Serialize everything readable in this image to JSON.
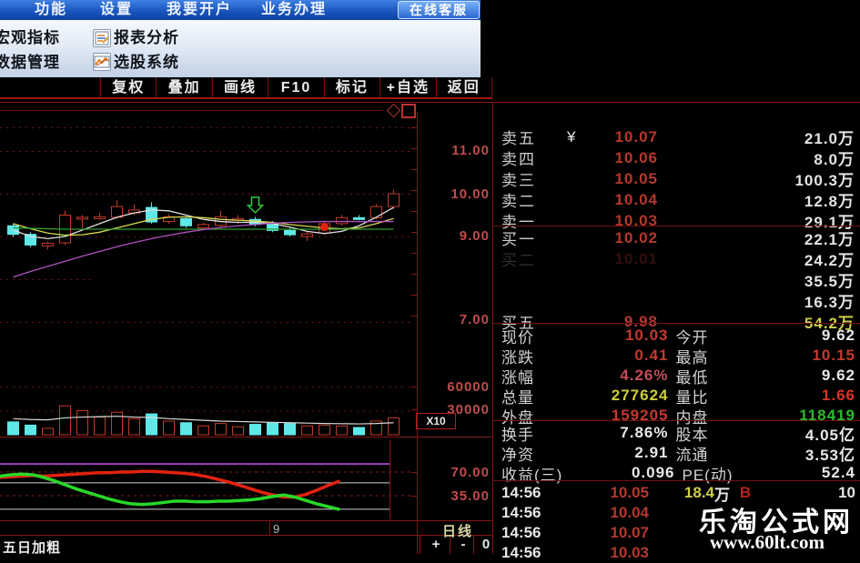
{
  "menubar": {
    "items": [
      "功能",
      "设置",
      "我要开户",
      "业务办理"
    ],
    "service_button": "在线客服"
  },
  "menu_panel": {
    "left_items": [
      "宏观指标",
      "数据管理"
    ],
    "right_items": [
      "报表分析",
      "选股系统"
    ]
  },
  "toolbar": {
    "buttons": [
      "复权",
      "叠加",
      "画线",
      "F10",
      "标记",
      "+自选",
      "返回"
    ]
  },
  "chart": {
    "price_axis": [
      "11.00",
      "10.00",
      "9.00",
      "7.00"
    ],
    "volume_axis": [
      "60000",
      "30000"
    ],
    "multiplier": "X10",
    "indicator_axis": [
      "70.00",
      "35.00"
    ],
    "x_label": "9",
    "period": "日线",
    "indicator_name": "五日加粗",
    "zoom_plus": "+",
    "zoom_minus": "-",
    "zoom_zero": "0"
  },
  "chart_data": {
    "type": "candlestick",
    "price_gridlines": [
      11,
      10,
      9,
      7
    ],
    "partial_gridlines": [
      8
    ],
    "volume_gridlines": [
      60000,
      30000
    ],
    "candles": [
      {
        "o": 9.25,
        "h": 9.3,
        "l": 9.0,
        "c": 9.05,
        "dir": "down"
      },
      {
        "o": 9.05,
        "h": 9.1,
        "l": 8.75,
        "c": 8.8,
        "dir": "down"
      },
      {
        "o": 8.78,
        "h": 8.88,
        "l": 8.7,
        "c": 8.84,
        "dir": "up"
      },
      {
        "o": 8.85,
        "h": 9.6,
        "l": 8.8,
        "c": 9.5,
        "dir": "up"
      },
      {
        "o": 9.45,
        "h": 9.5,
        "l": 9.2,
        "c": 9.44,
        "dir": "up"
      },
      {
        "o": 9.42,
        "h": 9.55,
        "l": 9.38,
        "c": 9.46,
        "dir": "up"
      },
      {
        "o": 9.45,
        "h": 9.85,
        "l": 9.42,
        "c": 9.7,
        "dir": "up"
      },
      {
        "o": 9.55,
        "h": 9.75,
        "l": 9.5,
        "c": 9.62,
        "dir": "up"
      },
      {
        "o": 9.68,
        "h": 9.8,
        "l": 9.3,
        "c": 9.34,
        "dir": "down"
      },
      {
        "o": 9.35,
        "h": 9.52,
        "l": 9.3,
        "c": 9.46,
        "dir": "up"
      },
      {
        "o": 9.42,
        "h": 9.46,
        "l": 9.2,
        "c": 9.25,
        "dir": "down"
      },
      {
        "o": 9.2,
        "h": 9.32,
        "l": 9.15,
        "c": 9.28,
        "dir": "up"
      },
      {
        "o": 9.26,
        "h": 9.6,
        "l": 9.2,
        "c": 9.46,
        "dir": "up"
      },
      {
        "o": 9.4,
        "h": 9.5,
        "l": 9.3,
        "c": 9.42,
        "dir": "up"
      },
      {
        "o": 9.4,
        "h": 9.46,
        "l": 9.24,
        "c": 9.28,
        "dir": "down"
      },
      {
        "o": 9.3,
        "h": 9.36,
        "l": 9.1,
        "c": 9.14,
        "dir": "down"
      },
      {
        "o": 9.14,
        "h": 9.2,
        "l": 9.0,
        "c": 9.04,
        "dir": "down"
      },
      {
        "o": 9.0,
        "h": 9.12,
        "l": 8.9,
        "c": 9.06,
        "dir": "up"
      },
      {
        "o": 9.08,
        "h": 9.36,
        "l": 9.04,
        "c": 9.3,
        "dir": "up"
      },
      {
        "o": 9.3,
        "h": 9.5,
        "l": 9.26,
        "c": 9.44,
        "dir": "up"
      },
      {
        "o": 9.44,
        "h": 9.5,
        "l": 9.38,
        "c": 9.42,
        "dir": "down"
      },
      {
        "o": 9.44,
        "h": 9.76,
        "l": 9.4,
        "c": 9.7,
        "dir": "up"
      },
      {
        "o": 9.7,
        "h": 10.1,
        "l": 9.64,
        "c": 10.0,
        "dir": "up"
      }
    ],
    "volumes": [
      16000,
      12000,
      8000,
      36000,
      30000,
      22000,
      28000,
      20000,
      26000,
      17000,
      15000,
      11000,
      14000,
      10000,
      13000,
      15000,
      14000,
      11000,
      12000,
      11000,
      9000,
      17000,
      21000
    ],
    "volume_ma": [
      20000,
      19000,
      18500,
      21000,
      22000,
      22500,
      23000,
      22000,
      21500,
      20000,
      19000,
      18000,
      17000,
      16500,
      16000,
      15500,
      15000,
      14500,
      14000,
      13800,
      13500,
      14000,
      15000
    ],
    "ma_lines": [
      {
        "name": "ma-white",
        "color": "#e0e0e0",
        "values": [
          9.15,
          9.0,
          8.95,
          9.0,
          9.15,
          9.3,
          9.45,
          9.55,
          9.62,
          9.6,
          9.5,
          9.4,
          9.35,
          9.33,
          9.33,
          9.3,
          9.22,
          9.12,
          9.07,
          9.12,
          9.25,
          9.45,
          9.68
        ]
      },
      {
        "name": "ma-yellow",
        "color": "#d8d855",
        "values": [
          9.3,
          9.18,
          9.08,
          9.03,
          9.04,
          9.1,
          9.2,
          9.3,
          9.4,
          9.45,
          9.46,
          9.44,
          9.4,
          9.38,
          9.36,
          9.33,
          9.28,
          9.24,
          9.2,
          9.18,
          9.2,
          9.3,
          9.42
        ]
      },
      {
        "name": "ma-green",
        "color": "#2f9e2f",
        "values": [
          9.2,
          9.19,
          9.18,
          9.17,
          9.17,
          9.17,
          9.17,
          9.17,
          9.17,
          9.17,
          9.17,
          9.17,
          9.17,
          9.17,
          9.17,
          9.17,
          9.17,
          9.17,
          9.17,
          9.17,
          9.17,
          9.17,
          9.17
        ]
      },
      {
        "name": "ma-magenta",
        "color": "#b050c0",
        "values": [
          8.05,
          8.18,
          8.3,
          8.42,
          8.54,
          8.65,
          8.76,
          8.86,
          8.95,
          9.03,
          9.1,
          9.16,
          9.21,
          9.25,
          9.28,
          9.31,
          9.33,
          9.34,
          9.35,
          9.35,
          9.35,
          9.35,
          9.35
        ]
      }
    ],
    "indicator": {
      "red": [
        62,
        63,
        64,
        65,
        64,
        65,
        66,
        67,
        68,
        69,
        69,
        70,
        70,
        71,
        71,
        70,
        69,
        68,
        66,
        63,
        59,
        55,
        50,
        45,
        40,
        36,
        33,
        33,
        37,
        43,
        50,
        56
      ],
      "green": [
        64,
        66,
        67,
        66,
        62,
        57,
        51,
        45,
        40,
        35,
        30,
        26,
        23,
        22,
        23,
        25,
        27,
        27,
        26,
        26,
        27,
        27,
        28,
        29,
        31,
        34,
        36,
        33,
        28,
        23,
        19,
        15
      ],
      "purple_level": 82,
      "white_levels": [
        54,
        15
      ],
      "dashed_levels": [
        70,
        35
      ]
    },
    "annotations": [
      {
        "type": "green-arrow",
        "index": 14,
        "price": 9.62
      },
      {
        "type": "red-dot",
        "index": 18,
        "price": 9.22
      }
    ]
  },
  "quote_panel": {
    "currency_marker": "¥",
    "sell_levels": [
      {
        "label": "卖五",
        "price": "10.07",
        "volume": "21.0万"
      },
      {
        "label": "卖四",
        "price": "10.06",
        "volume": "8.0万"
      },
      {
        "label": "卖三",
        "price": "10.05",
        "volume": "100.3万"
      },
      {
        "label": "卖二",
        "price": "10.04",
        "volume": "12.8万"
      },
      {
        "label": "卖一",
        "price": "10.03",
        "volume": "29.1万"
      }
    ],
    "buy_levels": [
      {
        "label": "买一",
        "price": "10.02",
        "volume": "22.1万"
      },
      {
        "label": "买二",
        "price": "10.01",
        "volume": "24.2万"
      },
      {
        "label": "",
        "price": "",
        "volume": "35.5万"
      },
      {
        "label": "",
        "price": "",
        "volume": "16.3万"
      },
      {
        "label": "买五",
        "price": "9.98",
        "volume": "54.2万"
      }
    ],
    "stats": [
      {
        "label_a": "现价",
        "value_a": "10.03",
        "label_b": "今开",
        "value_b": "9.62"
      },
      {
        "label_a": "涨跌",
        "value_a": "0.41",
        "label_b": "最高",
        "value_b": "10.15"
      },
      {
        "label_a": "涨幅",
        "value_a": "4.26%",
        "label_b": "最低",
        "value_b": "9.62"
      },
      {
        "label_a": "总量",
        "value_a": "277624",
        "label_b": "量比",
        "value_b": "1.66"
      },
      {
        "label_a": "外盘",
        "value_a": "159205",
        "label_b": "内盘",
        "value_b": "118419"
      }
    ],
    "stats2": [
      {
        "label_a": "换手",
        "value_a": "7.86%",
        "label_b": "股本",
        "value_b": "4.05亿"
      },
      {
        "label_a": "净资",
        "value_a": "2.91",
        "label_b": "流通",
        "value_b": "3.53亿"
      },
      {
        "label_a": "收益(三)",
        "value_a": "0.096",
        "label_b": "PE(动)",
        "value_b": "52.4"
      }
    ],
    "ticks": [
      {
        "time": "14:56",
        "price": "10.05",
        "volume": "18.4",
        "unit": "万",
        "side": "B",
        "extra": "10"
      },
      {
        "time": "14:56",
        "price": "10.04",
        "volume": "",
        "unit": "",
        "side": "",
        "extra": ""
      },
      {
        "time": "14:56",
        "price": "10.07",
        "volume": "",
        "unit": "",
        "side": "",
        "extra": ""
      },
      {
        "time": "14:56",
        "price": "10.03",
        "volume": "",
        "unit": "",
        "side": "",
        "extra": ""
      }
    ]
  },
  "watermark": {
    "line1": "乐淘公式网",
    "line2": "www.60lt.com"
  },
  "colors": {
    "up": "#c23a2a",
    "down": "#5ee8e8",
    "grid": "#6e1212",
    "border": "#8a1515",
    "vol_ma": "#d8d8d8",
    "ind_red": "#e22210",
    "ind_green": "#28d828",
    "ind_purple": "#a040c0",
    "ind_white": "#cfcfcf",
    "annotation_green": "#2ecc40"
  }
}
